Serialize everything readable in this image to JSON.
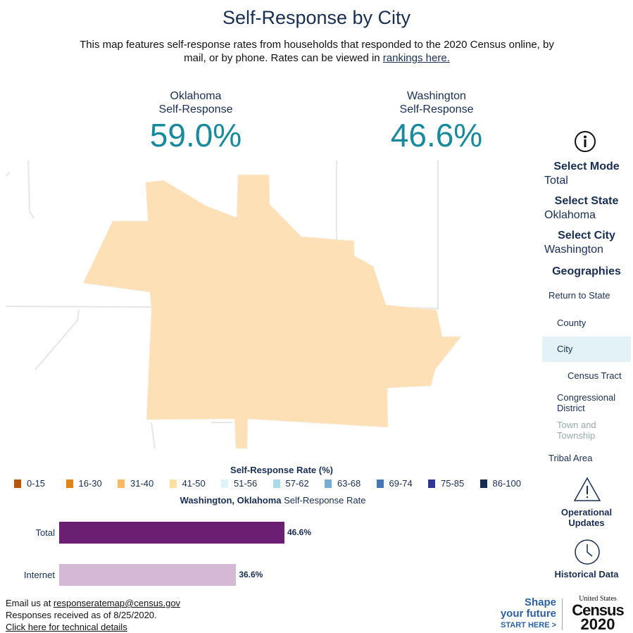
{
  "header": {
    "title": "Self-Response by City",
    "description": "This map features self-response rates from households that responded to the 2020 Census online, by mail, or by phone. Rates can be viewed in ",
    "rankings_link": "rankings here."
  },
  "stats": [
    {
      "label1": "Oklahoma",
      "label2": "Self-Response",
      "value": "59.0%"
    },
    {
      "label1": "Washington",
      "label2": "Self-Response",
      "value": "46.6%"
    }
  ],
  "sidebar": {
    "info_icon": "info-icon",
    "mode_label": "Select Mode",
    "mode_value": "Total",
    "state_label": "Select State",
    "state_value": "Oklahoma",
    "city_label": "Select City",
    "city_value": "Washington",
    "geographies_label": "Geographies",
    "geographies": [
      "Return to State",
      "County",
      "City",
      "Census Tract",
      "Congressional District",
      "Town and Township",
      "Tribal Area"
    ],
    "selected_geography": "City",
    "operational_updates": "Operational Updates",
    "historical_data": "Historical Data"
  },
  "legend": {
    "title": "Self-Response Rate (%)",
    "items": [
      {
        "label": "0-15",
        "color": "#b35806"
      },
      {
        "label": "16-30",
        "color": "#e08214"
      },
      {
        "label": "31-40",
        "color": "#fdb863"
      },
      {
        "label": "41-50",
        "color": "#fee0a0"
      },
      {
        "label": "51-56",
        "color": "#e0f3f8"
      },
      {
        "label": "57-62",
        "color": "#abd9e9"
      },
      {
        "label": "63-68",
        "color": "#74add1"
      },
      {
        "label": "69-74",
        "color": "#4575b4"
      },
      {
        "label": "75-85",
        "color": "#313695"
      },
      {
        "label": "86-100",
        "color": "#142c52"
      }
    ]
  },
  "bar_chart": {
    "title_bold": "Washington, Oklahoma",
    "title_rest": " Self-Response Rate",
    "bars": [
      {
        "label": "Total",
        "value": 46.6,
        "display": "46.6%",
        "color": "#6a1f72"
      },
      {
        "label": "Internet",
        "value": 36.6,
        "display": "36.6%",
        "color": "#d4b8d6"
      }
    ]
  },
  "footer": {
    "email_prefix": "Email us at ",
    "email": "responseratemap@census.gov",
    "received": "Responses received as of 8/25/2020.",
    "tech_link": "Click here for technical details"
  },
  "logo": {
    "line1": "Shape",
    "line2": "your future",
    "line3": "START HERE >",
    "census_top": "United States",
    "census_mid": "Census",
    "census_year": "2020"
  },
  "map": {
    "fill": "#fde0b6"
  }
}
